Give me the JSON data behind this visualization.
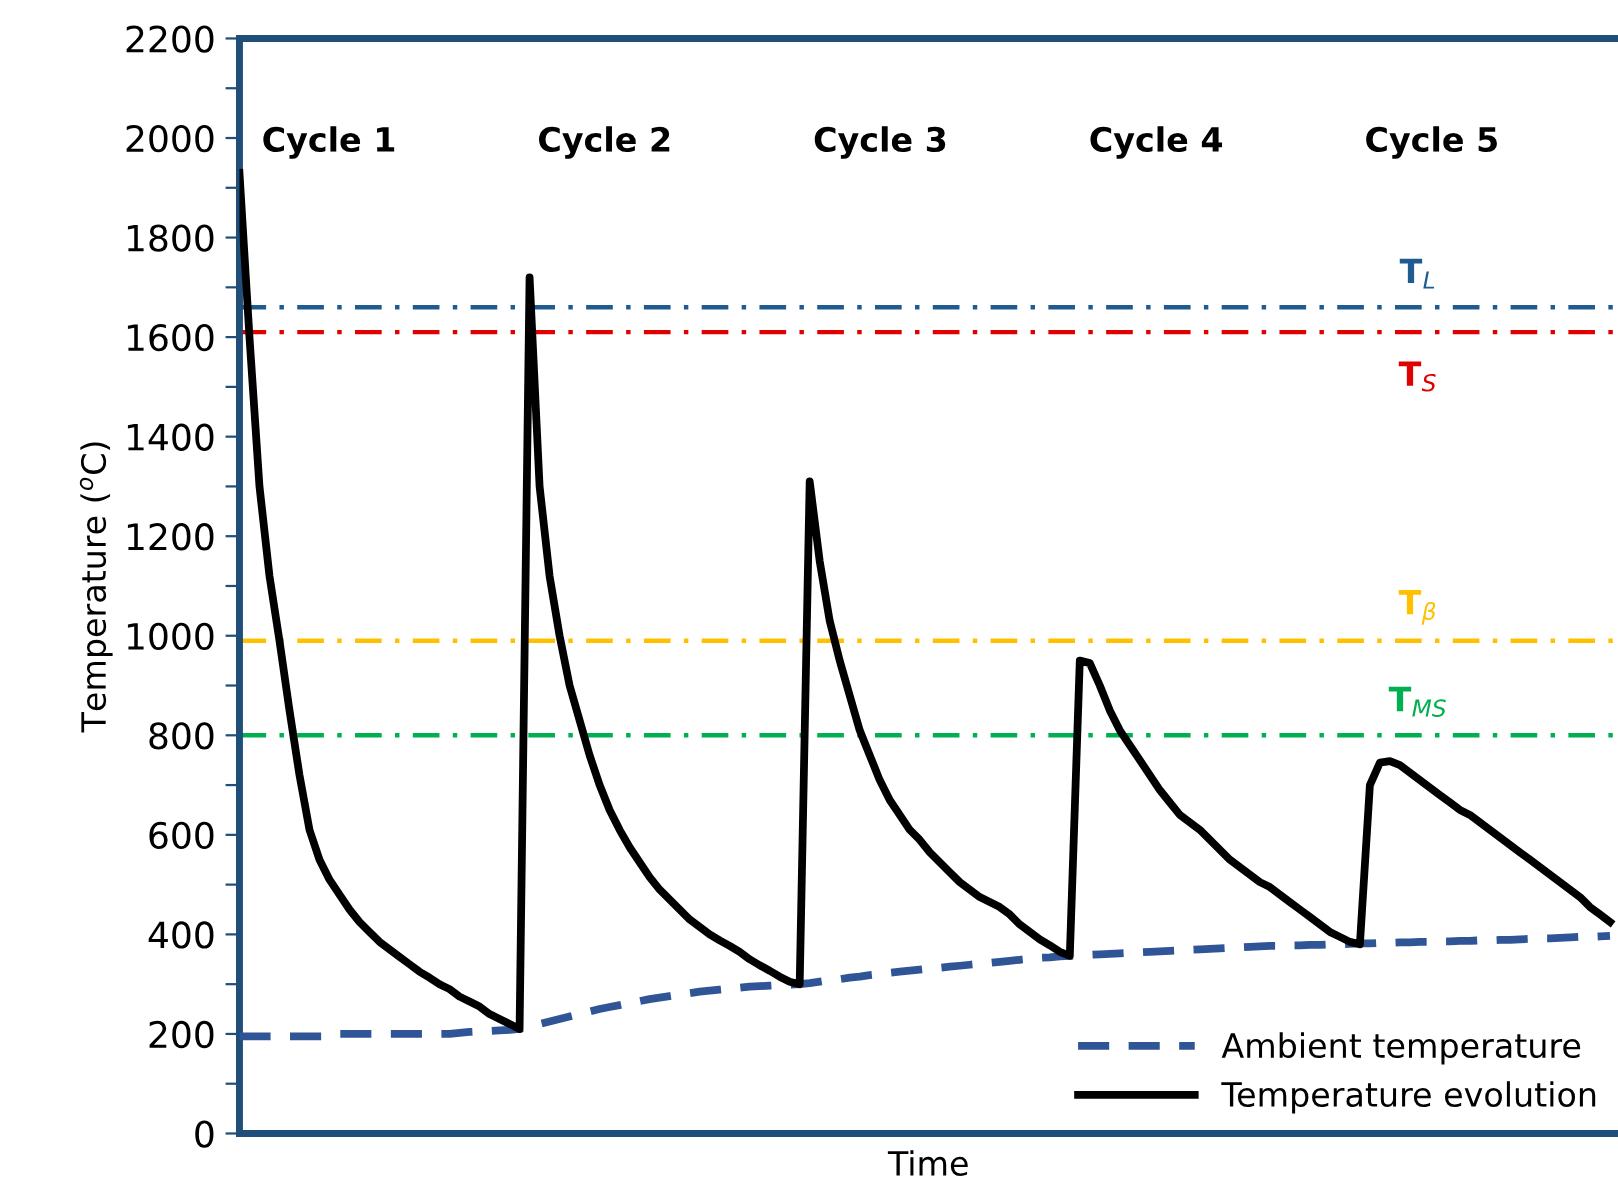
{
  "chart_data": {
    "type": "line",
    "ylabel": "Temperature ($^{o}$C)",
    "xlabel": "Time",
    "categories": [
      null,
      null,
      null,
      null,
      null,
      null,
      null,
      null,
      null,
      null,
      null,
      null,
      null,
      null,
      null,
      null,
      null,
      null,
      null,
      null,
      null,
      null,
      null,
      null,
      null,
      null,
      null,
      null,
      null,
      null,
      null,
      null,
      null,
      null,
      null,
      null,
      null,
      null,
      null,
      null,
      null,
      null,
      null,
      null,
      null,
      null,
      null,
      null,
      null,
      null,
      null,
      null,
      null,
      null,
      null,
      null,
      null,
      null,
      null,
      null,
      null,
      null,
      null,
      null,
      null,
      null,
      null,
      null,
      null,
      null,
      null,
      null,
      null,
      null,
      null,
      null,
      null,
      null,
      null,
      null,
      null,
      null,
      null,
      null,
      null,
      null,
      null,
      null,
      null,
      null,
      null,
      null,
      null,
      null,
      null,
      null,
      null,
      null,
      null,
      null,
      null,
      null,
      null,
      null,
      null,
      null,
      null,
      null,
      null,
      null,
      null,
      null,
      null,
      null,
      null,
      null,
      null,
      null,
      null,
      null,
      null,
      null,
      null,
      null,
      null,
      null,
      null,
      null,
      null,
      null,
      null,
      null,
      null,
      null,
      null,
      null,
      null,
      null
    ],
    "series": [
      {
        "name": "Ambient temperature",
        "color": "#2f5597",
        "line_style": "dashed",
        "values": [
          195,
          195,
          195,
          195,
          195,
          195,
          195,
          195,
          195,
          195,
          200,
          200,
          200,
          200,
          200,
          200,
          200,
          200,
          200,
          200,
          200,
          200,
          202,
          204,
          205,
          206,
          207,
          208,
          210,
          215,
          220,
          225,
          230,
          235,
          240,
          245,
          250,
          254,
          258,
          262,
          266,
          270,
          273,
          276,
          279,
          282,
          285,
          287,
          289,
          291,
          293,
          295,
          296,
          297,
          298,
          299,
          300,
          302,
          305,
          308,
          310,
          313,
          315,
          318,
          320,
          323,
          325,
          327,
          329,
          331,
          333,
          335,
          337,
          339,
          341,
          343,
          345,
          347,
          349,
          351,
          353,
          354,
          356,
          357,
          358,
          359,
          360,
          361,
          362,
          363,
          364,
          365,
          366,
          367,
          368,
          369,
          370,
          371,
          372,
          373,
          374,
          375,
          376,
          377,
          377,
          378,
          378,
          379,
          379,
          380,
          380,
          381,
          382,
          382,
          383,
          383,
          384,
          384,
          385,
          385,
          386,
          386,
          387,
          387,
          388,
          388,
          389,
          389,
          390,
          391,
          392,
          392,
          393,
          394,
          395,
          395,
          396,
          397
        ]
      },
      {
        "name": "Temperature evolution",
        "color": "#000000",
        "line_style": "solid",
        "values": [
          1930,
          1600,
          1300,
          1120,
          990,
          850,
          720,
          610,
          550,
          510,
          480,
          450,
          425,
          405,
          385,
          370,
          355,
          340,
          325,
          313,
          300,
          290,
          275,
          265,
          255,
          240,
          230,
          220,
          210,
          1720,
          1300,
          1120,
          1000,
          900,
          830,
          760,
          700,
          650,
          610,
          575,
          545,
          515,
          490,
          470,
          450,
          430,
          415,
          400,
          388,
          377,
          365,
          350,
          338,
          327,
          315,
          305,
          300,
          1310,
          1150,
          1030,
          950,
          880,
          810,
          760,
          710,
          670,
          640,
          610,
          590,
          565,
          545,
          525,
          505,
          490,
          475,
          465,
          455,
          440,
          420,
          405,
          390,
          378,
          365,
          357,
          950,
          945,
          900,
          850,
          810,
          780,
          750,
          720,
          690,
          665,
          640,
          625,
          610,
          590,
          570,
          550,
          535,
          520,
          505,
          495,
          480,
          465,
          450,
          435,
          420,
          405,
          395,
          385,
          380,
          700,
          745,
          748,
          740,
          725,
          710,
          695,
          680,
          665,
          650,
          640,
          625,
          610,
          595,
          580,
          565,
          550,
          535,
          520,
          505,
          490,
          475,
          455,
          440,
          425
        ]
      }
    ],
    "ref_lines": [
      {
        "axis": "y",
        "value": 1660,
        "label": "T$_{L}$",
        "color": "#1f5b8f",
        "line_style": "dashdot"
      },
      {
        "axis": "y",
        "value": 1610,
        "label": "T$_{S}$",
        "color": "#e00000",
        "line_style": "dashdot"
      },
      {
        "axis": "y",
        "value": 990,
        "label": "T$_{β}$",
        "color": "#ffc000",
        "line_style": "dashdot"
      },
      {
        "axis": "y",
        "value": 800,
        "label": "T$_{MS}$",
        "color": "#00b050",
        "line_style": "dashdot"
      }
    ],
    "annotations": [
      "Cycle 1",
      "Cycle 2",
      "Cycle 3",
      "Cycle 4",
      "Cycle 5"
    ],
    "ylim": [
      0,
      2200
    ],
    "yticks": [
      0,
      {
        "value": 100,
        "label": null
      },
      200,
      {
        "value": 300,
        "label": null
      },
      400,
      {
        "value": 500,
        "label": null
      },
      600,
      {
        "value": 700,
        "label": null
      },
      800,
      {
        "value": 900,
        "label": null
      },
      1000,
      {
        "value": 1100,
        "label": null
      },
      1200,
      {
        "value": 1300,
        "label": null
      },
      1400,
      {
        "value": 1500,
        "label": null
      },
      1600,
      {
        "value": 1700,
        "label": null
      },
      1800,
      {
        "value": 1900,
        "label": null
      },
      2000,
      {
        "value": 2100,
        "label": null
      },
      2200
    ],
    "tick_labels": "y",
    "grid": false,
    "legend": "bottom right"
  }
}
